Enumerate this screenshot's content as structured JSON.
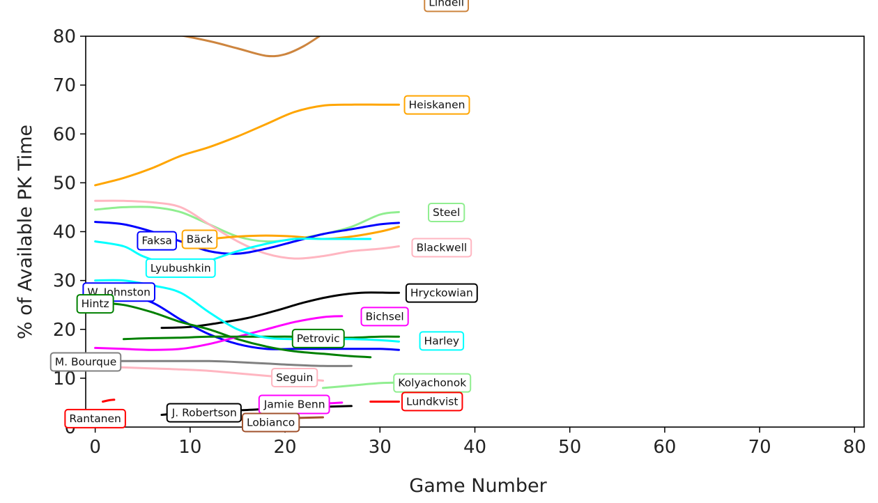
{
  "chart_data": {
    "type": "line",
    "title": "",
    "xlabel": "Game Number",
    "ylabel": "% of Available PK Time",
    "xlim": [
      -1,
      81
    ],
    "ylim": [
      0,
      80
    ],
    "x_ticks": [
      0,
      10,
      20,
      30,
      40,
      50,
      60,
      70,
      80
    ],
    "y_ticks": [
      0,
      10,
      20,
      30,
      40,
      50,
      60,
      70,
      80
    ],
    "grid": false,
    "legend": "none",
    "series": [
      {
        "name": "Lindell",
        "color": "#cd853f",
        "x": [
          5,
          8,
          12,
          15,
          18,
          20,
          22,
          24
        ],
        "y": [
          81,
          80.5,
          79,
          77.5,
          76,
          76.3,
          78,
          80.5
        ],
        "label_at": [
          37,
          87
        ]
      },
      {
        "name": "Heiskanen",
        "color": "#ffa500",
        "x": [
          0,
          3,
          6,
          9,
          12,
          15,
          18,
          21,
          24,
          27,
          30,
          32
        ],
        "y": [
          49.5,
          51,
          53,
          55.5,
          57.3,
          59.5,
          62,
          64.5,
          65.8,
          66,
          66,
          66
        ],
        "label_at": [
          36,
          66
        ]
      },
      {
        "name": "Steel",
        "color": "#90ee90",
        "x": [
          0,
          3,
          6,
          9,
          12,
          15,
          18,
          21,
          24,
          27,
          30,
          32
        ],
        "y": [
          44.5,
          45,
          45,
          44,
          41.5,
          39,
          38,
          38.5,
          39.5,
          41,
          43.5,
          44
        ],
        "label_at": [
          37,
          44
        ]
      },
      {
        "name": "Blackwell",
        "color": "#ffb6c1",
        "x": [
          0,
          3,
          6,
          9,
          12,
          15,
          18,
          21,
          24,
          27,
          30,
          32
        ],
        "y": [
          46.3,
          46.3,
          46,
          45,
          41.5,
          38,
          35.5,
          34.5,
          35,
          36,
          36.5,
          37
        ],
        "label_at": [
          36.5,
          36.8
        ]
      },
      {
        "name": "Bäck",
        "color": "#ffa500",
        "x": [
          9,
          12,
          15,
          18,
          21,
          24,
          27,
          30,
          32
        ],
        "y": [
          38,
          38.5,
          39,
          39.2,
          39,
          38.5,
          39,
          40,
          41
        ],
        "label_at": [
          11,
          38.5
        ]
      },
      {
        "name": "Faksa",
        "color": "#0000ff",
        "x": [
          0,
          3,
          6,
          9,
          12,
          15,
          18,
          21,
          24,
          27,
          30,
          32
        ],
        "y": [
          42,
          41.5,
          40,
          38,
          36,
          35.5,
          36.5,
          38,
          39.5,
          40.5,
          41.5,
          41.8
        ],
        "label_at": [
          6.5,
          38.2
        ]
      },
      {
        "name": "Lyubushkin",
        "color": "#00ffff",
        "x": [
          0,
          3,
          5,
          8,
          10,
          12,
          15,
          18,
          21,
          24,
          27,
          29
        ],
        "y": [
          38,
          37,
          35,
          33,
          32.5,
          34,
          36,
          37.5,
          38.5,
          38.5,
          38.5,
          38.5
        ],
        "label_at": [
          9,
          32.6
        ]
      },
      {
        "name": "Hryckowian",
        "color": "#000000",
        "x": [
          7,
          10,
          13,
          16,
          19,
          22,
          25,
          28,
          31,
          32
        ],
        "y": [
          20.3,
          20.5,
          21.3,
          22.3,
          23.8,
          25.5,
          26.8,
          27.5,
          27.5,
          27.5
        ],
        "label_at": [
          36.5,
          27.5
        ]
      },
      {
        "name": "W. Johnston",
        "color": "#0000ff",
        "x": [
          0,
          3,
          6,
          9,
          12,
          15,
          18,
          21,
          24,
          27,
          30,
          32
        ],
        "y": [
          27.5,
          27,
          25.5,
          22,
          19,
          17,
          16,
          16,
          16,
          16,
          16,
          15.8
        ],
        "label_at": [
          2.5,
          27.7
        ]
      },
      {
        "name": "Hintz",
        "color": "#008000",
        "x": [
          0,
          3,
          6,
          9,
          12,
          15,
          18,
          21,
          24,
          27,
          29
        ],
        "y": [
          25.5,
          25,
          23.5,
          21.5,
          20,
          18,
          16.5,
          15.5,
          15,
          14.5,
          14.3
        ],
        "label_at": [
          0,
          25.3
        ]
      },
      {
        "name": "Bichsel",
        "color": "#ff00ff",
        "x": [
          0,
          3,
          6,
          9,
          12,
          15,
          18,
          21,
          24,
          26
        ],
        "y": [
          16.2,
          16,
          15.8,
          16,
          17,
          18.5,
          20,
          21.5,
          22.5,
          22.7
        ],
        "label_at": [
          30.5,
          22.7
        ]
      },
      {
        "name": "Petrovic",
        "color": "#008000",
        "x": [
          3,
          6,
          9,
          12,
          15,
          18,
          21,
          24,
          27,
          30,
          32
        ],
        "y": [
          18,
          18.2,
          18.3,
          18.5,
          18.5,
          18.5,
          18.5,
          18.3,
          18.3,
          18.5,
          18.5
        ],
        "label_at": [
          23.5,
          18.2
        ]
      },
      {
        "name": "Harley",
        "color": "#00ffff",
        "x": [
          0,
          3,
          6,
          9,
          12,
          15,
          18,
          21,
          24,
          27,
          30,
          32
        ],
        "y": [
          30,
          30,
          29,
          27.5,
          23.5,
          20,
          18.3,
          18,
          18,
          18,
          17.8,
          17.5
        ],
        "label_at": [
          36.5,
          17.7
        ]
      },
      {
        "name": "M. Bourque",
        "color": "#808080",
        "x": [
          0,
          3,
          6,
          9,
          12,
          15,
          18,
          21,
          24,
          27
        ],
        "y": [
          13.5,
          13.5,
          13.5,
          13.5,
          13.5,
          13.3,
          13,
          12.7,
          12.5,
          12.5
        ],
        "label_at": [
          -1,
          13.4
        ]
      },
      {
        "name": "Seguin",
        "color": "#ffb6c1",
        "x": [
          0,
          3,
          6,
          9,
          12,
          15,
          18,
          21,
          24
        ],
        "y": [
          12.3,
          12.2,
          12,
          11.8,
          11.5,
          11,
          10.5,
          10,
          9.5
        ],
        "label_at": [
          21,
          10.2
        ]
      },
      {
        "name": "Kolyachonok",
        "color": "#90ee90",
        "x": [
          24,
          27,
          30,
          32
        ],
        "y": [
          8,
          8.5,
          9,
          9.1
        ],
        "label_at": [
          35.5,
          9.1
        ]
      },
      {
        "name": "Lundkvist",
        "color": "#ff0000",
        "x": [
          29,
          31,
          32
        ],
        "y": [
          5.2,
          5.2,
          5.2
        ],
        "label_at": [
          35.5,
          5.3
        ]
      },
      {
        "name": "Jamie Benn",
        "color": "#ff00ff",
        "x": [
          20,
          23,
          26
        ],
        "y": [
          4.5,
          4.7,
          5
        ],
        "label_at": [
          21,
          4.7
        ]
      },
      {
        "name": "J. Robertson",
        "color": "#000000",
        "x": [
          7,
          10,
          13,
          16,
          19,
          22,
          25,
          27
        ],
        "y": [
          2.5,
          3,
          3.3,
          3.5,
          3.8,
          4,
          4.2,
          4.3
        ],
        "label_at": [
          11.5,
          3
        ]
      },
      {
        "name": "Lobianco",
        "color": "#a0522d",
        "x": [
          15,
          20,
          24
        ],
        "y": [
          1.5,
          1.8,
          2
        ],
        "label_at": [
          18.5,
          1
        ]
      },
      {
        "name": "Rantanen",
        "color": "#ff0000",
        "x": [
          0.8,
          1.5,
          2
        ],
        "y": [
          5.2,
          5.5,
          5.6
        ],
        "label_at": [
          0,
          1.8
        ]
      }
    ]
  }
}
